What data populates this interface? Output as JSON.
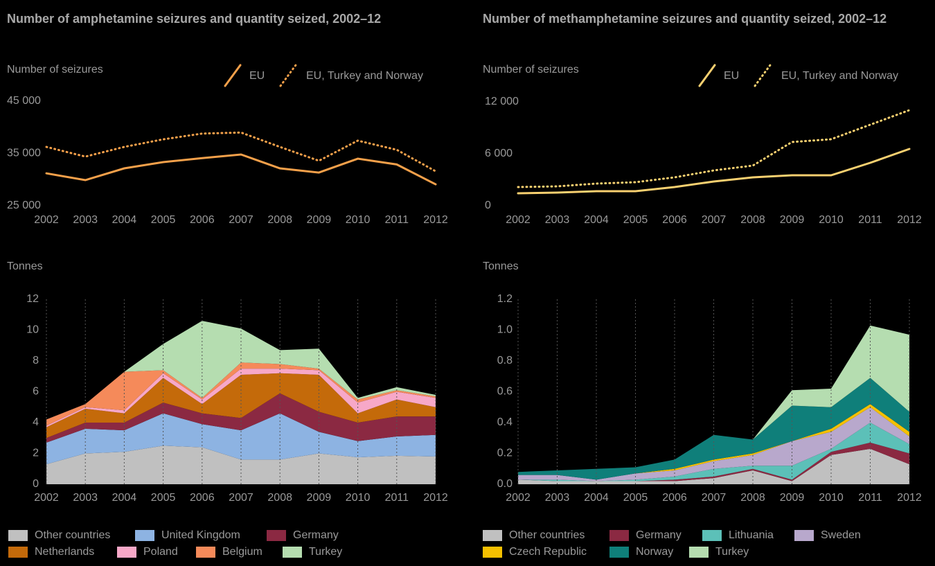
{
  "chart_data": [
    {
      "type": "line",
      "title": "Number of amphetamine seizures and quantity seized, 2002–12",
      "ylabel": "Number of seizures",
      "x": [
        2002,
        2003,
        2004,
        2005,
        2006,
        2007,
        2008,
        2009,
        2010,
        2011,
        2012
      ],
      "xlim": [
        2002,
        2012
      ],
      "xticks": [
        2002,
        2003,
        2004,
        2005,
        2006,
        2007,
        2008,
        2009,
        2010,
        2011,
        2012
      ],
      "ylim": [
        25000,
        45000
      ],
      "yticks": [
        {
          "value": 25000,
          "label": "25 000"
        },
        {
          "value": 35000,
          "label": "35 000"
        },
        {
          "value": 45000,
          "label": "45 000"
        }
      ],
      "series": [
        {
          "name": "EU",
          "color": "#f4a04a",
          "style": "solid",
          "values": [
            31200,
            29900,
            32150,
            33350,
            34100,
            34800,
            32150,
            31350,
            34000,
            32900,
            29100
          ]
        },
        {
          "name": "EU, Turkey and Norway",
          "color": "#f4a04a",
          "style": "dotted",
          "values": [
            36250,
            34400,
            36250,
            37700,
            38800,
            39000,
            36250,
            33600,
            37450,
            35700,
            31600
          ]
        }
      ]
    },
    {
      "type": "line",
      "title": "Number of methamphetamine seizures and quantity seized, 2002–12",
      "ylabel": "Number of seizures",
      "x": [
        2002,
        2003,
        2004,
        2005,
        2006,
        2007,
        2008,
        2009,
        2010,
        2011,
        2012
      ],
      "xlim": [
        2002,
        2012
      ],
      "xticks": [
        2002,
        2003,
        2004,
        2005,
        2006,
        2007,
        2008,
        2009,
        2010,
        2011,
        2012
      ],
      "ylim": [
        0,
        12000
      ],
      "yticks": [
        0,
        {
          "value": 6000,
          "label": "6 000"
        },
        {
          "value": 12000,
          "label": "12 000"
        }
      ],
      "series": [
        {
          "name": "EU",
          "color": "#f7d070",
          "style": "solid",
          "values": [
            1440,
            1520,
            1680,
            1680,
            2160,
            2800,
            3280,
            3520,
            3520,
            4960,
            6560
          ]
        },
        {
          "name": "EU, Turkey and Norway",
          "color": "#f7d070",
          "style": "dotted",
          "values": [
            2160,
            2240,
            2560,
            2720,
            3280,
            4080,
            4640,
            7360,
            7680,
            9360,
            11040
          ]
        }
      ]
    },
    {
      "type": "stacked_area",
      "ylabel": "Tonnes",
      "grid": true,
      "x": [
        2002,
        2003,
        2004,
        2005,
        2006,
        2007,
        2008,
        2009,
        2010,
        2011,
        2012
      ],
      "xlim": [
        2002,
        2012
      ],
      "xticks": [
        2002,
        2003,
        2004,
        2005,
        2006,
        2007,
        2008,
        2009,
        2010,
        2011,
        2012
      ],
      "ylim": [
        0,
        12
      ],
      "yticks": [
        0,
        2,
        4,
        6,
        8,
        10,
        12
      ],
      "series": [
        {
          "name": "Other countries",
          "color": "#c0c0c0",
          "values": [
            1.3,
            2.0,
            2.1,
            2.5,
            2.4,
            1.6,
            1.6,
            2.0,
            1.75,
            1.85,
            1.8
          ]
        },
        {
          "name": "United Kingdom",
          "color": "#8db3e2",
          "values": [
            1.4,
            1.6,
            1.4,
            2.1,
            1.5,
            1.9,
            3.0,
            1.4,
            1.05,
            1.25,
            1.4
          ]
        },
        {
          "name": "Germany",
          "color": "#8b2942",
          "values": [
            0.3,
            0.4,
            0.5,
            0.7,
            0.7,
            0.8,
            1.3,
            1.3,
            1.2,
            1.3,
            1.2
          ]
        },
        {
          "name": "Netherlands",
          "color": "#c46a0a",
          "values": [
            0.7,
            0.9,
            0.6,
            1.6,
            0.6,
            2.8,
            1.3,
            2.4,
            0.6,
            1.1,
            0.6
          ]
        },
        {
          "name": "Poland",
          "color": "#f7a8c8",
          "values": [
            0.1,
            0.1,
            0.2,
            0.3,
            0.3,
            0.4,
            0.3,
            0.3,
            0.7,
            0.5,
            0.6
          ]
        },
        {
          "name": "Belgium",
          "color": "#f58a5a",
          "values": [
            0.4,
            0.2,
            2.5,
            0.2,
            0.1,
            0.4,
            0.3,
            0.1,
            0.2,
            0.1,
            0.1
          ]
        },
        {
          "name": "Turkey",
          "color": "#b5ddb0",
          "values": [
            0,
            0,
            0,
            1.7,
            5.0,
            2.2,
            0.9,
            1.3,
            0.1,
            0.2,
            0.1
          ]
        }
      ]
    },
    {
      "type": "stacked_area",
      "ylabel": "Tonnes",
      "grid": true,
      "x": [
        2002,
        2003,
        2004,
        2005,
        2006,
        2007,
        2008,
        2009,
        2010,
        2011,
        2012
      ],
      "xlim": [
        2002,
        2012
      ],
      "xticks": [
        2002,
        2003,
        2004,
        2005,
        2006,
        2007,
        2008,
        2009,
        2010,
        2011,
        2012
      ],
      "ylim": [
        0,
        1.2
      ],
      "yticks": [
        {
          "value": 0,
          "label": "0.0"
        },
        0.2,
        0.4,
        0.6,
        0.8,
        {
          "value": 1,
          "label": "1.0"
        },
        1.2
      ],
      "series": [
        {
          "name": "Other countries",
          "color": "#c0c0c0",
          "values": [
            0.03,
            0.02,
            0.02,
            0.02,
            0.02,
            0.04,
            0.09,
            0.02,
            0.19,
            0.23,
            0.13
          ]
        },
        {
          "name": "Germany",
          "color": "#8b2942",
          "values": [
            0,
            0,
            0,
            0,
            0.01,
            0.01,
            0.01,
            0.01,
            0.02,
            0.04,
            0.07
          ]
        },
        {
          "name": "Lithuania",
          "color": "#5cc0b8",
          "values": [
            0,
            0.01,
            0,
            0.01,
            0.02,
            0.05,
            0.02,
            0.09,
            0.02,
            0.13,
            0.06
          ]
        },
        {
          "name": "Sweden",
          "color": "#b8a8cc",
          "values": [
            0.03,
            0.03,
            0.01,
            0.04,
            0.04,
            0.05,
            0.07,
            0.16,
            0.11,
            0.1,
            0.05
          ]
        },
        {
          "name": "Czech Republic",
          "color": "#f5c000",
          "values": [
            0,
            0,
            0,
            0,
            0.01,
            0.01,
            0.01,
            0,
            0.02,
            0.02,
            0.03
          ]
        },
        {
          "name": "Norway",
          "color": "#0f7f7a",
          "values": [
            0.02,
            0.03,
            0.07,
            0.04,
            0.06,
            0.16,
            0.09,
            0.23,
            0.14,
            0.17,
            0.13
          ]
        },
        {
          "name": "Turkey",
          "color": "#b5ddb0",
          "values": [
            0,
            0,
            0,
            0,
            0,
            0,
            0,
            0.1,
            0.12,
            0.34,
            0.5
          ]
        }
      ]
    }
  ]
}
